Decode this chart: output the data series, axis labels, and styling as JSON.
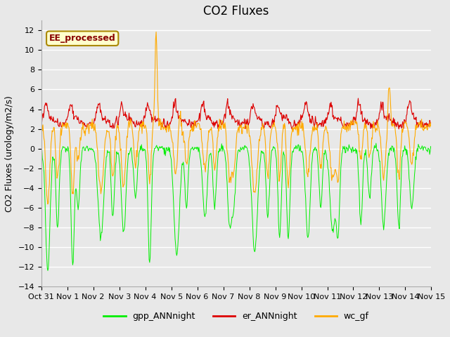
{
  "title": "CO2 Fluxes",
  "ylabel": "CO2 Fluxes (urology/m2/s)",
  "xlabel": "",
  "ylim": [
    -14,
    13
  ],
  "yticks": [
    -14,
    -12,
    -10,
    -8,
    -6,
    -4,
    -2,
    0,
    2,
    4,
    6,
    8,
    10,
    12
  ],
  "background_color": "#e8e8e8",
  "plot_bg_color": "#e8e8e8",
  "series_colors": {
    "gpp_ANNnight": "#00ee00",
    "er_ANNnight": "#dd0000",
    "wc_gf": "#ffaa00"
  },
  "legend_labels": [
    "gpp_ANNnight",
    "er_ANNnight",
    "wc_gf"
  ],
  "annotation_text": "EE_processed",
  "annotation_color": "#880000",
  "annotation_bg": "#ffffcc",
  "annotation_border": "#aa8800",
  "title_fontsize": 12,
  "axis_fontsize": 9,
  "tick_fontsize": 8,
  "legend_fontsize": 9,
  "n_points": 720,
  "seed": 42
}
